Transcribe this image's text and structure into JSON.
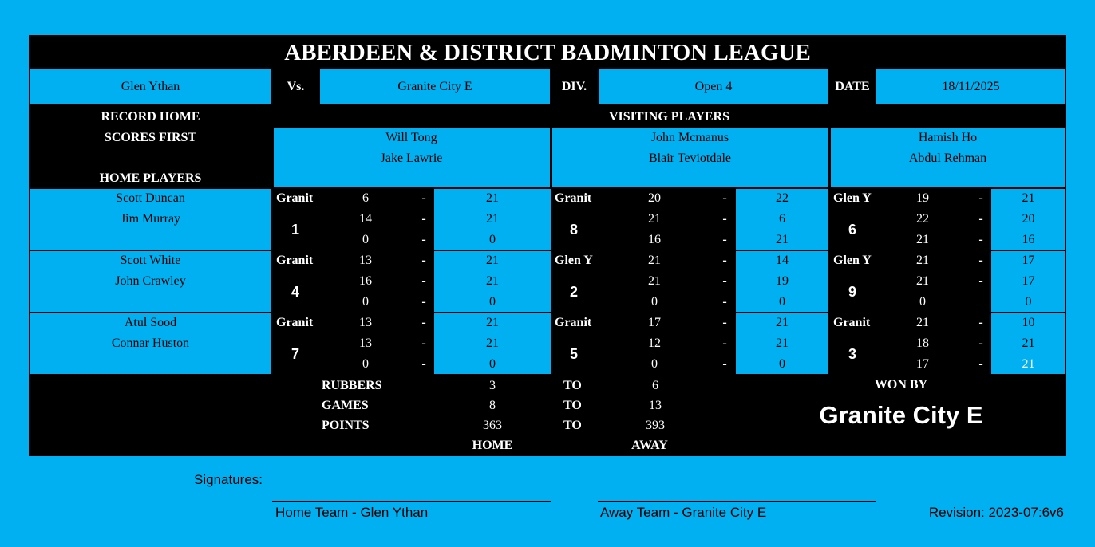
{
  "title": "ABERDEEN & DISTRICT BADMINTON LEAGUE",
  "header": {
    "home_team": "Glen Ythan",
    "vs_label": "Vs.",
    "away_team": "Granite City E",
    "div_label": "DIV.",
    "division": "Open 4",
    "date_label": "DATE",
    "date": "18/11/2025"
  },
  "labels": {
    "record_home_1": "RECORD HOME",
    "record_home_2": "SCORES FIRST",
    "home_players": "HOME PLAYERS",
    "visiting_players": "VISITING PLAYERS"
  },
  "visiting_pairs": [
    [
      "Will Tong",
      "Jake Lawrie"
    ],
    [
      "John Mcmanus",
      "Blair Teviotdale"
    ],
    [
      "Hamish Ho",
      "Abdul Rehman"
    ]
  ],
  "home_pairs": [
    [
      "Scott Duncan",
      "Jim Murray"
    ],
    [
      "Scott White",
      "John Crawley"
    ],
    [
      "Atul Sood",
      "Connar Huston"
    ]
  ],
  "rubbers": [
    [
      {
        "number": "1",
        "winner": "Granit",
        "games": [
          [
            "6",
            "-",
            "21"
          ],
          [
            "14",
            "-",
            "21"
          ],
          [
            "0",
            "-",
            "0"
          ]
        ]
      },
      {
        "number": "8",
        "winner": "Granit",
        "games": [
          [
            "20",
            "-",
            "22"
          ],
          [
            "21",
            "-",
            "6"
          ],
          [
            "16",
            "-",
            "21"
          ]
        ]
      },
      {
        "number": "6",
        "winner": "Glen Y",
        "games": [
          [
            "19",
            "-",
            "21"
          ],
          [
            "22",
            "-",
            "20"
          ],
          [
            "21",
            "-",
            "16"
          ]
        ]
      }
    ],
    [
      {
        "number": "4",
        "winner": "Granit",
        "games": [
          [
            "13",
            "-",
            "21"
          ],
          [
            "16",
            "-",
            "21"
          ],
          [
            "0",
            "-",
            "0"
          ]
        ]
      },
      {
        "number": "2",
        "winner": "Glen Y",
        "games": [
          [
            "21",
            "-",
            "14"
          ],
          [
            "21",
            "-",
            "19"
          ],
          [
            "0",
            "-",
            "0"
          ]
        ]
      },
      {
        "number": "9",
        "winner": "Glen Y",
        "games": [
          [
            "21",
            "-",
            "17"
          ],
          [
            "21",
            "-",
            "17"
          ],
          [
            "0",
            "",
            "0"
          ]
        ]
      }
    ],
    [
      {
        "number": "7",
        "winner": "Granit",
        "games": [
          [
            "13",
            "-",
            "21"
          ],
          [
            "13",
            "-",
            "21"
          ],
          [
            "0",
            "-",
            "0"
          ]
        ]
      },
      {
        "number": "5",
        "winner": "Granit",
        "games": [
          [
            "17",
            "-",
            "21"
          ],
          [
            "12",
            "-",
            "21"
          ],
          [
            "0",
            "-",
            "0"
          ]
        ]
      },
      {
        "number": "3",
        "winner": "Granit",
        "games": [
          [
            "21",
            "-",
            "10"
          ],
          [
            "18",
            "-",
            "21"
          ],
          [
            "17",
            "-",
            "21"
          ]
        ]
      }
    ]
  ],
  "summary": {
    "rubbers_label": "RUBBERS",
    "rubbers_home": "3",
    "rubbers_away": "6",
    "games_label": "GAMES",
    "games_home": "8",
    "games_away": "13",
    "points_label": "POINTS",
    "points_home": "363",
    "points_away": "393",
    "to_label": "TO",
    "home_label": "HOME",
    "away_label": "AWAY",
    "won_by_label": "WON BY",
    "winner": "Granite City E"
  },
  "footer": {
    "signatures_label": "Signatures:",
    "home_sig": "Home Team - Glen Ythan",
    "away_sig": "Away Team - Granite City E",
    "revision": "Revision: 2023-07:6v6"
  },
  "colors": {
    "background": "#00b0f0",
    "sheet": "#000000"
  }
}
